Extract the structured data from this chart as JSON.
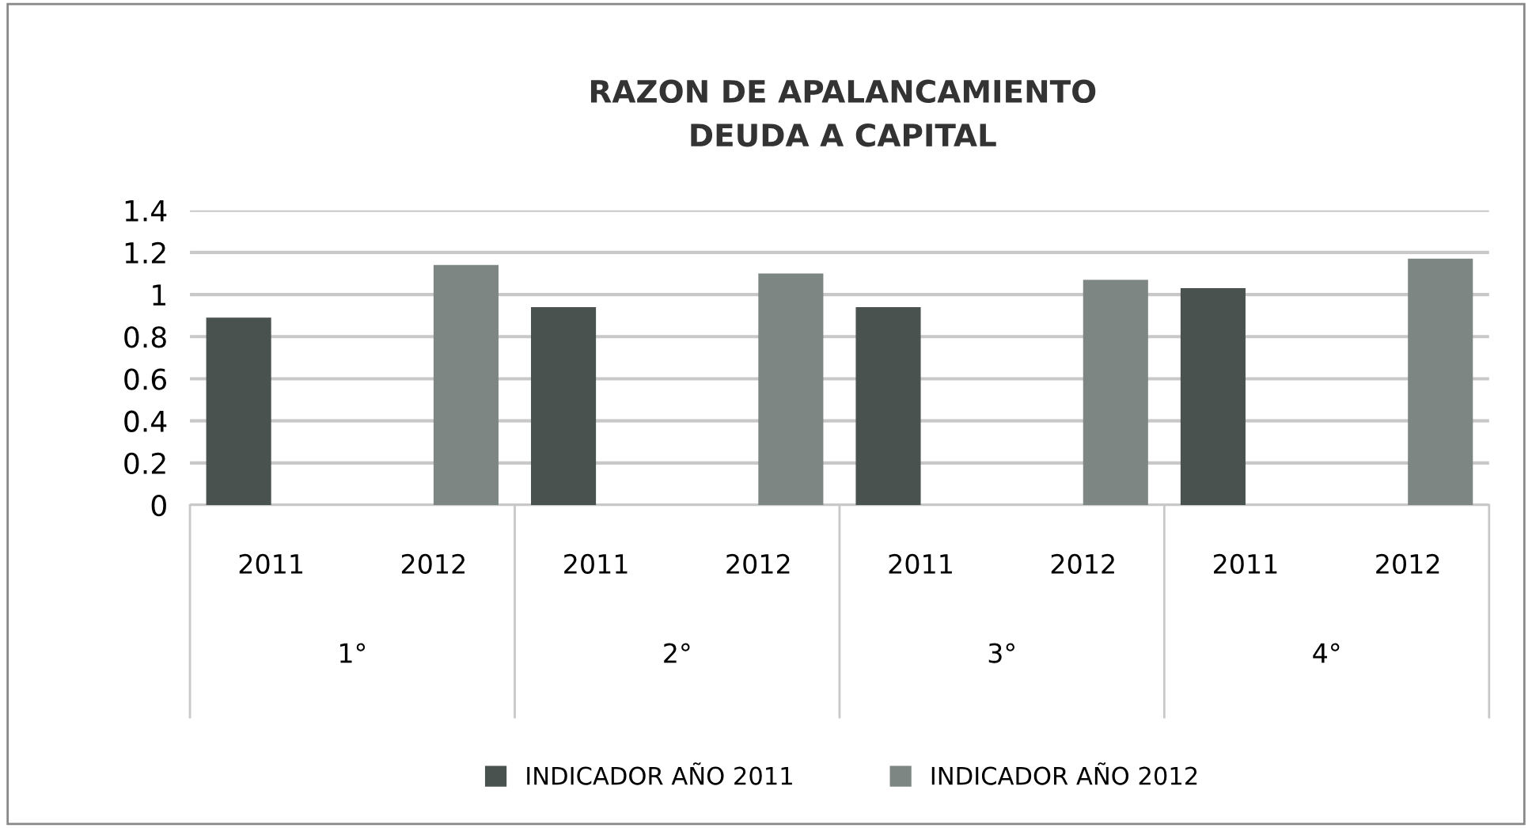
{
  "chart_data": {
    "type": "bar",
    "title": "RAZON DE APALANCAMIENTO\nDEUDA A CAPITAL",
    "categories": [
      "2011",
      "2012",
      "2011",
      "2012",
      "2011",
      "2012",
      "2011",
      "2012"
    ],
    "series": [
      {
        "name": "INDICADOR AÑO 2011",
        "color": "#4a524f",
        "values": [
          0.89,
          null,
          0.94,
          null,
          0.94,
          null,
          1.03,
          null
        ]
      },
      {
        "name": "INDICADOR AÑO 2012",
        "color": "#7d8683",
        "values": [
          null,
          1.14,
          null,
          1.1,
          null,
          1.07,
          null,
          1.17
        ]
      }
    ],
    "annotations": [
      "1°",
      "2°",
      "3°",
      "4°"
    ],
    "ylim": [
      0,
      1.4
    ],
    "yticks": [
      0,
      0.2,
      0.4,
      0.6,
      0.8,
      1,
      1.2,
      1.4
    ],
    "grid": "y",
    "legend": "bottom"
  }
}
